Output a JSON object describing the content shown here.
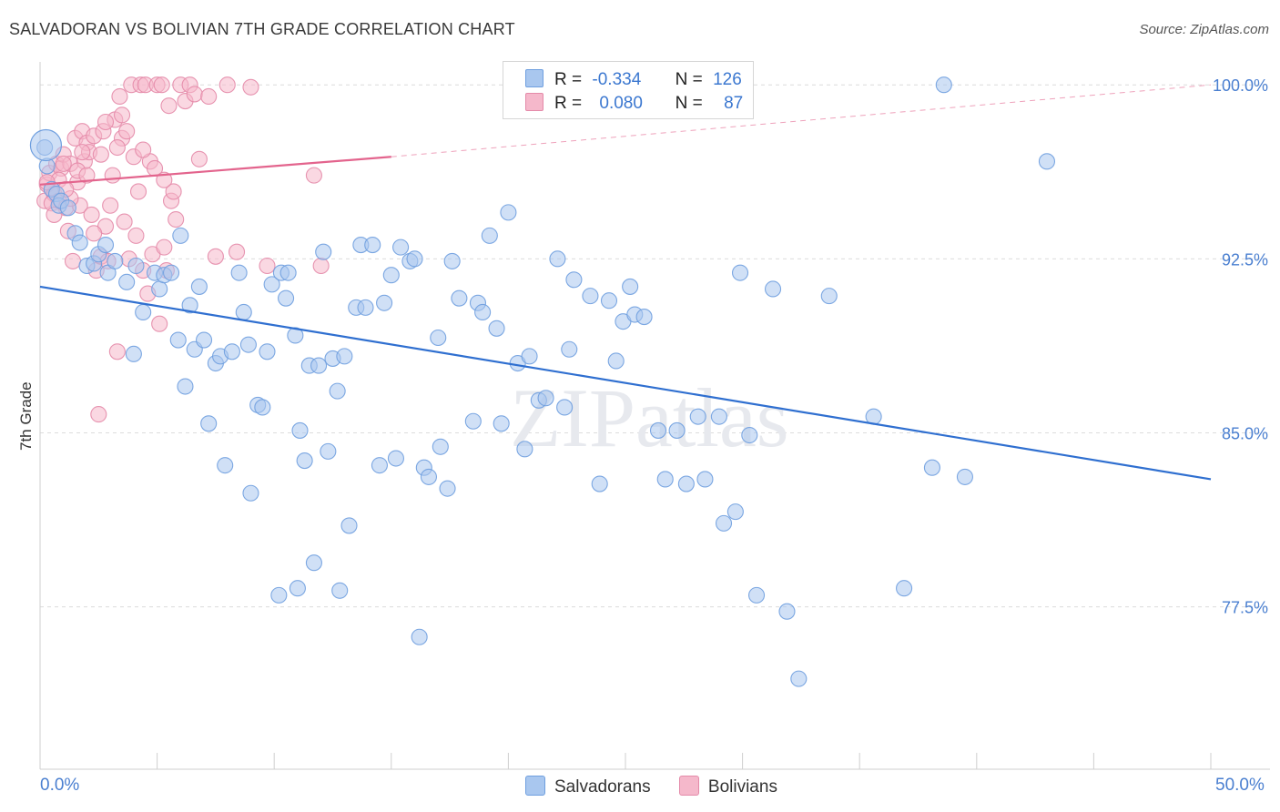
{
  "title": "SALVADORAN VS BOLIVIAN 7TH GRADE CORRELATION CHART",
  "source": "Source: ZipAtlas.com",
  "watermark": "ZIPatlas",
  "legend": {
    "rows": [
      {
        "r_label": "R =",
        "r_value": "-0.334",
        "n_label": "N =",
        "n_value": "126",
        "color": "#a9c7ef"
      },
      {
        "r_label": "R =",
        "r_value": "0.080",
        "n_label": "N =",
        "n_value": "87",
        "color": "#f5b8cb"
      }
    ],
    "bottom": [
      {
        "label": "Salvadorans",
        "color": "#a9c7ef"
      },
      {
        "label": "Bolivians",
        "color": "#f5b8cb"
      }
    ]
  },
  "x_ticks": {
    "left": "0.0%",
    "right": "50.0%"
  },
  "chart_data": {
    "type": "scatter",
    "title": "SALVADORAN VS BOLIVIAN 7TH GRADE CORRELATION CHART",
    "xlabel": "",
    "ylabel": "7th Grade",
    "xlim": [
      0,
      50
    ],
    "ylim": [
      70.5,
      101.5
    ],
    "y_ticks": [
      100.0,
      92.5,
      85.0,
      77.5
    ],
    "y_tick_labels": [
      "100.0%",
      "92.5%",
      "85.0%",
      "77.5%"
    ],
    "x_tick_labels": [
      "0.0%",
      "50.0%"
    ],
    "grid": true,
    "series": [
      {
        "name": "Salvadorans",
        "color": "#6f9fdf",
        "fill": "#a9c7ef",
        "trend": {
          "x": [
            0,
            50
          ],
          "y": [
            91.3,
            83.0
          ],
          "color": "#2f6fd0",
          "dashed_from": null
        },
        "points": [
          [
            0.2,
            97.3
          ],
          [
            0.3,
            96.5
          ],
          [
            0.5,
            95.5
          ],
          [
            0.7,
            95.3
          ],
          [
            0.8,
            94.8
          ],
          [
            0.9,
            95.0
          ],
          [
            1.2,
            94.7
          ],
          [
            1.5,
            93.6
          ],
          [
            1.7,
            93.2
          ],
          [
            2.0,
            92.2
          ],
          [
            2.3,
            92.3
          ],
          [
            2.5,
            92.7
          ],
          [
            2.8,
            93.1
          ],
          [
            2.9,
            91.9
          ],
          [
            3.2,
            92.4
          ],
          [
            3.7,
            91.5
          ],
          [
            4.0,
            88.4
          ],
          [
            4.1,
            92.2
          ],
          [
            4.4,
            90.2
          ],
          [
            4.9,
            91.9
          ],
          [
            5.1,
            91.2
          ],
          [
            5.3,
            91.8
          ],
          [
            5.6,
            91.9
          ],
          [
            5.9,
            89.0
          ],
          [
            6.0,
            93.5
          ],
          [
            6.2,
            87.0
          ],
          [
            6.4,
            90.5
          ],
          [
            6.6,
            88.6
          ],
          [
            6.8,
            91.3
          ],
          [
            7.0,
            89.0
          ],
          [
            7.2,
            85.4
          ],
          [
            7.5,
            88.0
          ],
          [
            7.7,
            88.3
          ],
          [
            7.9,
            83.6
          ],
          [
            8.2,
            88.5
          ],
          [
            8.5,
            91.9
          ],
          [
            8.7,
            90.2
          ],
          [
            8.9,
            88.8
          ],
          [
            9.0,
            82.4
          ],
          [
            9.3,
            86.2
          ],
          [
            9.5,
            86.1
          ],
          [
            9.7,
            88.5
          ],
          [
            9.9,
            91.4
          ],
          [
            10.3,
            91.9
          ],
          [
            10.5,
            90.8
          ],
          [
            10.6,
            91.9
          ],
          [
            10.9,
            89.2
          ],
          [
            11.1,
            85.1
          ],
          [
            11.3,
            83.8
          ],
          [
            11.5,
            87.9
          ],
          [
            11.7,
            79.4
          ],
          [
            11.9,
            87.9
          ],
          [
            12.1,
            92.8
          ],
          [
            12.3,
            84.2
          ],
          [
            12.5,
            88.2
          ],
          [
            12.7,
            86.8
          ],
          [
            13.0,
            88.3
          ],
          [
            13.2,
            81.0
          ],
          [
            13.5,
            90.4
          ],
          [
            13.7,
            93.1
          ],
          [
            13.9,
            90.4
          ],
          [
            14.2,
            93.1
          ],
          [
            14.5,
            83.6
          ],
          [
            14.7,
            90.6
          ],
          [
            15.0,
            91.8
          ],
          [
            15.2,
            83.9
          ],
          [
            15.4,
            93.0
          ],
          [
            15.8,
            92.4
          ],
          [
            16.0,
            92.5
          ],
          [
            16.4,
            83.5
          ],
          [
            16.6,
            83.1
          ],
          [
            17.0,
            89.1
          ],
          [
            17.1,
            84.4
          ],
          [
            17.4,
            82.6
          ],
          [
            17.6,
            92.4
          ],
          [
            17.9,
            90.8
          ],
          [
            18.5,
            85.5
          ],
          [
            18.7,
            90.6
          ],
          [
            18.9,
            90.2
          ],
          [
            19.2,
            93.5
          ],
          [
            19.5,
            89.5
          ],
          [
            19.7,
            85.4
          ],
          [
            20.0,
            94.5
          ],
          [
            20.4,
            88.0
          ],
          [
            20.7,
            84.3
          ],
          [
            20.9,
            88.3
          ],
          [
            21.3,
            86.4
          ],
          [
            21.6,
            86.5
          ],
          [
            22.1,
            92.5
          ],
          [
            22.4,
            86.1
          ],
          [
            22.6,
            88.6
          ],
          [
            22.8,
            91.6
          ],
          [
            23.5,
            90.9
          ],
          [
            23.9,
            82.8
          ],
          [
            24.3,
            90.7
          ],
          [
            24.6,
            88.1
          ],
          [
            24.9,
            89.8
          ],
          [
            25.2,
            91.3
          ],
          [
            25.4,
            90.1
          ],
          [
            25.8,
            90.0
          ],
          [
            26.4,
            85.1
          ],
          [
            26.7,
            83.0
          ],
          [
            27.2,
            85.1
          ],
          [
            27.6,
            82.8
          ],
          [
            28.1,
            85.7
          ],
          [
            28.4,
            83.0
          ],
          [
            29.0,
            85.7
          ],
          [
            29.2,
            81.1
          ],
          [
            29.7,
            81.6
          ],
          [
            29.9,
            91.9
          ],
          [
            30.3,
            84.9
          ],
          [
            31.3,
            91.2
          ],
          [
            31.9,
            77.3
          ],
          [
            32.4,
            74.4
          ],
          [
            33.7,
            90.9
          ],
          [
            35.6,
            85.7
          ],
          [
            36.9,
            78.3
          ],
          [
            38.1,
            83.5
          ],
          [
            38.6,
            100.0
          ],
          [
            39.5,
            83.1
          ],
          [
            43.0,
            96.7
          ],
          [
            11.0,
            78.3
          ],
          [
            12.8,
            78.2
          ],
          [
            16.2,
            76.2
          ],
          [
            30.6,
            78.0
          ],
          [
            10.2,
            78.0
          ]
        ]
      },
      {
        "name": "Bolivians",
        "color": "#e48aa9",
        "fill": "#f5b8cb",
        "trend": {
          "x": [
            0,
            15,
            50
          ],
          "y": [
            95.7,
            96.9,
            100.0
          ],
          "color": "#e3648d",
          "dashed_from": 15
        },
        "points": [
          [
            0.2,
            95.0
          ],
          [
            0.3,
            95.7
          ],
          [
            0.4,
            96.2
          ],
          [
            0.5,
            95.5
          ],
          [
            0.6,
            95.3
          ],
          [
            0.7,
            96.6
          ],
          [
            0.8,
            95.0
          ],
          [
            0.9,
            96.4
          ],
          [
            1.0,
            97.0
          ],
          [
            1.1,
            94.7
          ],
          [
            1.2,
            93.7
          ],
          [
            1.3,
            96.6
          ],
          [
            1.4,
            92.4
          ],
          [
            1.5,
            97.7
          ],
          [
            1.6,
            95.8
          ],
          [
            1.7,
            94.8
          ],
          [
            1.8,
            98.0
          ],
          [
            1.9,
            96.7
          ],
          [
            2.0,
            97.5
          ],
          [
            2.1,
            97.1
          ],
          [
            2.2,
            94.4
          ],
          [
            2.3,
            97.8
          ],
          [
            2.4,
            92.0
          ],
          [
            2.5,
            85.8
          ],
          [
            2.6,
            92.6
          ],
          [
            2.7,
            98.0
          ],
          [
            2.8,
            93.9
          ],
          [
            2.9,
            92.4
          ],
          [
            3.0,
            94.8
          ],
          [
            3.1,
            96.1
          ],
          [
            3.2,
            98.5
          ],
          [
            3.3,
            88.5
          ],
          [
            3.4,
            99.5
          ],
          [
            3.5,
            97.7
          ],
          [
            3.6,
            94.1
          ],
          [
            3.7,
            98.0
          ],
          [
            3.8,
            92.5
          ],
          [
            3.9,
            100.0
          ],
          [
            4.0,
            96.9
          ],
          [
            4.1,
            93.5
          ],
          [
            4.2,
            95.4
          ],
          [
            4.3,
            100.0
          ],
          [
            4.4,
            92.0
          ],
          [
            4.5,
            100.0
          ],
          [
            4.6,
            91.0
          ],
          [
            4.7,
            96.7
          ],
          [
            4.8,
            92.7
          ],
          [
            4.9,
            96.4
          ],
          [
            5.0,
            100.0
          ],
          [
            5.1,
            89.7
          ],
          [
            5.2,
            100.0
          ],
          [
            5.3,
            93.0
          ],
          [
            5.4,
            92.0
          ],
          [
            5.5,
            99.1
          ],
          [
            5.6,
            95.0
          ],
          [
            5.7,
            95.4
          ],
          [
            5.8,
            94.2
          ],
          [
            6.0,
            100.0
          ],
          [
            6.2,
            99.3
          ],
          [
            6.4,
            100.0
          ],
          [
            6.6,
            99.6
          ],
          [
            6.8,
            96.8
          ],
          [
            7.2,
            99.5
          ],
          [
            7.5,
            92.6
          ],
          [
            8.0,
            100.0
          ],
          [
            8.4,
            92.8
          ],
          [
            9.0,
            99.9
          ],
          [
            9.7,
            92.2
          ],
          [
            11.7,
            96.1
          ],
          [
            12.0,
            92.2
          ],
          [
            0.5,
            94.9
          ],
          [
            0.8,
            95.9
          ],
          [
            1.0,
            96.6
          ],
          [
            1.3,
            95.1
          ],
          [
            1.6,
            96.3
          ],
          [
            2.0,
            96.1
          ],
          [
            2.3,
            93.6
          ],
          [
            2.6,
            97.0
          ],
          [
            3.5,
            98.7
          ],
          [
            1.8,
            97.1
          ],
          [
            0.3,
            95.8
          ],
          [
            0.6,
            94.4
          ],
          [
            1.1,
            95.5
          ],
          [
            2.8,
            98.4
          ],
          [
            3.3,
            97.3
          ],
          [
            4.4,
            97.2
          ],
          [
            5.3,
            95.9
          ]
        ]
      }
    ]
  }
}
